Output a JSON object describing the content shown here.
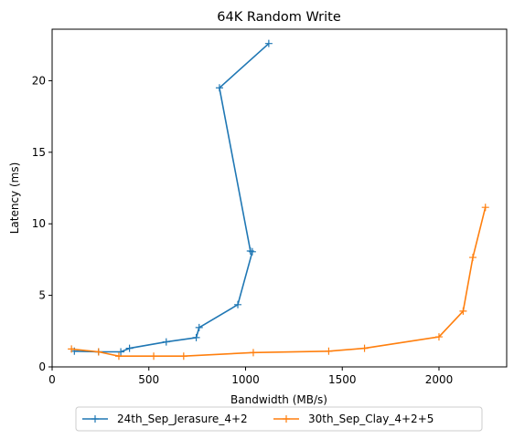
{
  "chart_data": {
    "type": "line",
    "title": "64K  Random Write",
    "xlabel": "Bandwidth (MB/s)",
    "ylabel": "Latency (ms)",
    "xlim": [
      0,
      2350
    ],
    "ylim": [
      0,
      23.6
    ],
    "xticks": [
      0,
      500,
      1000,
      1500,
      2000
    ],
    "yticks": [
      0,
      5,
      10,
      15,
      20
    ],
    "grid": false,
    "legend_placement": "bottom-center",
    "marker": "+",
    "series": [
      {
        "name": "24th_Sep_Jerasure_4+2",
        "color": "#1f77b4",
        "x": [
          115,
          240,
          355,
          400,
          590,
          745,
          760,
          960,
          1035,
          1025,
          865,
          1120
        ],
        "y": [
          1.1,
          1.05,
          1.05,
          1.3,
          1.75,
          2.05,
          2.75,
          4.35,
          8.05,
          8.1,
          19.5,
          22.6
        ]
      },
      {
        "name": "30th_Sep_Clay_4+2+5",
        "color": "#ff7f0e",
        "x": [
          100,
          240,
          345,
          525,
          680,
          1040,
          1430,
          1615,
          2000,
          2125,
          2175,
          2240
        ],
        "y": [
          1.25,
          1.05,
          0.75,
          0.75,
          0.75,
          1.0,
          1.1,
          1.3,
          2.1,
          3.9,
          7.65,
          11.15
        ]
      }
    ]
  }
}
